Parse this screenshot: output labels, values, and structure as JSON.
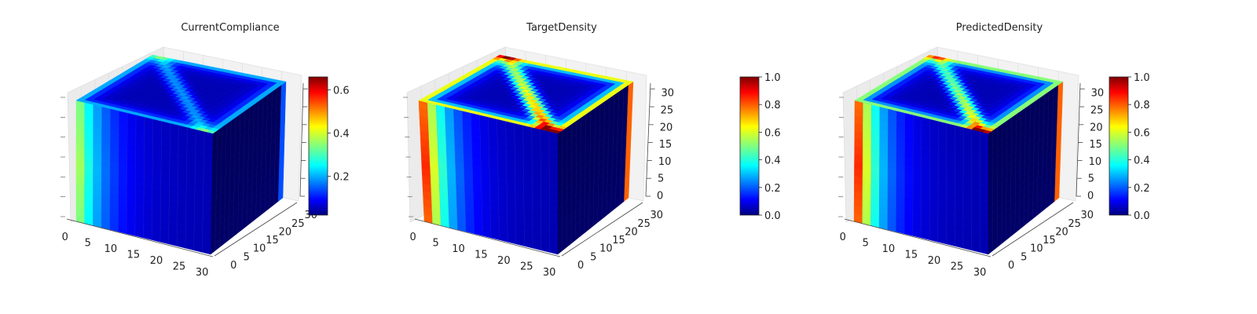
{
  "chart_data": [
    {
      "type": "heatmap",
      "title": "CurrentCompliance",
      "x_ticks": [
        "0",
        "5",
        "10",
        "15",
        "20",
        "25",
        "30"
      ],
      "y_ticks": [
        "0",
        "5",
        "10",
        "15",
        "20",
        "25",
        "30"
      ],
      "z_ticks": [],
      "colormap": "jet",
      "colorbar": {
        "min": 0.02,
        "max": 0.66,
        "ticks": [
          "0.2",
          "0.4",
          "0.6"
        ],
        "tick_values": [
          0.2,
          0.4,
          0.6
        ]
      },
      "left_face": {
        "edge": 0.62,
        "decay": 0.35,
        "floor": 0.05
      },
      "top_band": 0.3
    },
    {
      "type": "heatmap",
      "title": "TargetDensity",
      "x_ticks": [
        "0",
        "5",
        "10",
        "15",
        "20",
        "25",
        "30"
      ],
      "y_ticks": [
        "0",
        "5",
        "10",
        "15",
        "20",
        "25",
        "30"
      ],
      "z_ticks": [
        "0",
        "5",
        "10",
        "15",
        "20",
        "25",
        "30"
      ],
      "colormap": "jet",
      "colorbar": {
        "min": 0.0,
        "max": 1.0,
        "ticks": [
          "0.0",
          "0.2",
          "0.4",
          "0.6",
          "0.8",
          "1.0"
        ],
        "tick_values": [
          0,
          0.2,
          0.4,
          0.6,
          0.8,
          1.0
        ]
      },
      "left_face": {
        "edge": 1.0,
        "decay": 0.3,
        "floor": 0.05
      },
      "top_band": 0.85
    },
    {
      "type": "heatmap",
      "title": "PredictedDensity",
      "x_ticks": [
        "0",
        "5",
        "10",
        "15",
        "20",
        "25",
        "30"
      ],
      "y_ticks": [
        "0",
        "5",
        "10",
        "15",
        "20",
        "25",
        "30"
      ],
      "z_ticks": [
        "0",
        "5",
        "10",
        "15",
        "20",
        "25",
        "30"
      ],
      "colormap": "jet",
      "colorbar": {
        "min": 0.0,
        "max": 1.0,
        "ticks": [
          "0.0",
          "0.2",
          "0.4",
          "0.6",
          "0.8",
          "1.0"
        ],
        "tick_values": [
          0,
          0.2,
          0.4,
          0.6,
          0.8,
          1.0
        ]
      },
      "left_face": {
        "edge": 1.0,
        "decay": 0.3,
        "floor": 0.05
      },
      "top_band": 0.7
    }
  ]
}
